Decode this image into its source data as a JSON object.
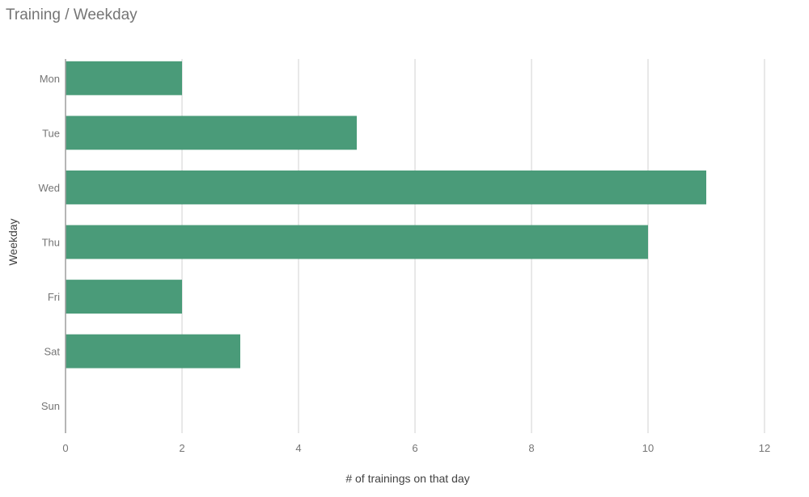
{
  "chart_data": {
    "type": "bar",
    "orientation": "horizontal",
    "title": "Training / Weekday",
    "xlabel": "# of trainings on that day",
    "ylabel": "Weekday",
    "categories": [
      "Mon",
      "Tue",
      "Wed",
      "Thu",
      "Fri",
      "Sat",
      "Sun"
    ],
    "values": [
      2,
      5,
      11,
      10,
      2,
      3,
      0
    ],
    "xlim": [
      0,
      12
    ],
    "xticks": [
      0,
      2,
      4,
      6,
      8,
      10,
      12
    ],
    "grid": true,
    "legend": "none",
    "colors": {
      "bar": "#4a9b79",
      "grid": "#e0e0e0",
      "axis": "#9e9e9e",
      "text": "#757575"
    }
  }
}
